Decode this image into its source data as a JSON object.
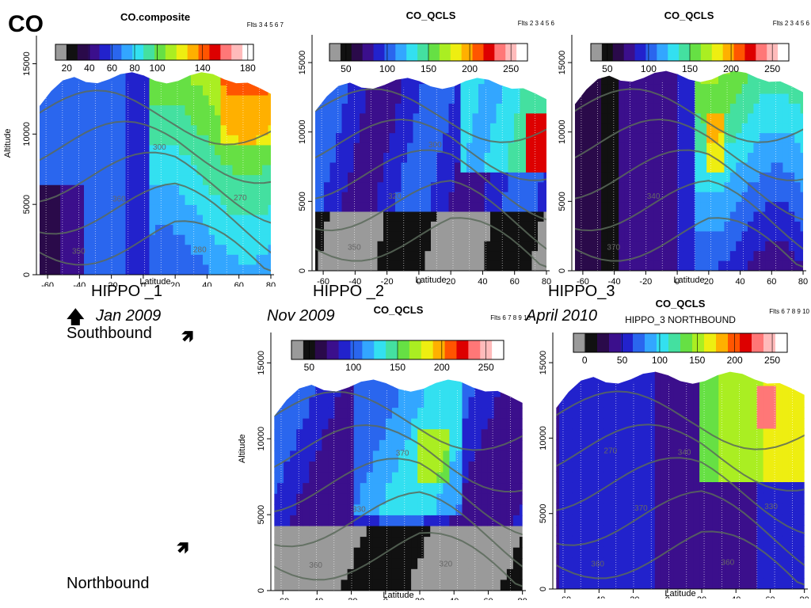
{
  "slide": {
    "title": "CO",
    "labels": {
      "hippo1": "HIPPO _1",
      "hippo1_date": "Jan 2009",
      "hippo2": "HIPPO _2",
      "hippo2_date": "Nov 2009",
      "hippo3": "HIPPO_3",
      "hippo3_date": "April 2010",
      "southbound": "Southbound",
      "northbound": "Northbound",
      "up_arrow": "🡅",
      "ne_arrow": "🡽"
    }
  },
  "chart_data": [
    {
      "type": "heatmap",
      "title": "CO.composite",
      "subtitle": "",
      "flights": "Flts 3  4  5  6  7",
      "xlabel": "Latitude",
      "ylabel": "Altitude",
      "xlim": [
        -67,
        82
      ],
      "ylim": [
        0,
        17000
      ],
      "xticks": [
        -60,
        -40,
        -20,
        0,
        20,
        40,
        60,
        80
      ],
      "yticks": [
        0,
        5000,
        10000,
        15000
      ],
      "colorbar_ticks": [
        20,
        40,
        60,
        80,
        100,
        140,
        180
      ],
      "colorbar_range": [
        10,
        185
      ],
      "contour_labels": [
        "350",
        "360",
        "300",
        "280",
        "270"
      ]
    },
    {
      "type": "heatmap",
      "title": "CO_QCLS",
      "subtitle": "",
      "flights": "Flts 2  3  4  5  6",
      "xlabel": "Latitude",
      "ylabel": "",
      "xlim": [
        -67,
        82
      ],
      "ylim": [
        0,
        17000
      ],
      "xticks": [
        -60,
        -40,
        -20,
        0,
        20,
        40,
        60,
        80
      ],
      "yticks": [
        0,
        5000,
        10000,
        15000
      ],
      "colorbar_ticks": [
        50,
        100,
        150,
        200,
        250
      ],
      "colorbar_range": [
        30,
        270
      ],
      "contour_labels": [
        "350",
        "320",
        "300"
      ]
    },
    {
      "type": "heatmap",
      "title": "CO_QCLS",
      "subtitle": "",
      "flights": "Flts 2  3  4  5  6",
      "xlabel": "Latitude",
      "ylabel": "",
      "xlim": [
        -67,
        82
      ],
      "ylim": [
        0,
        17000
      ],
      "xticks": [
        -60,
        -40,
        -20,
        0,
        20,
        40,
        60,
        80
      ],
      "yticks": [
        0,
        5000,
        10000,
        15000
      ],
      "colorbar_ticks": [
        50,
        100,
        150,
        200,
        250
      ],
      "colorbar_range": [
        30,
        270
      ],
      "contour_labels": [
        "370",
        "340"
      ]
    },
    {
      "type": "heatmap",
      "title": "CO_QCLS",
      "subtitle": "",
      "flights": "Flts 6  7  8  9  10",
      "xlabel": "Latitude",
      "ylabel": "Altitude",
      "xlim": [
        -67,
        82
      ],
      "ylim": [
        0,
        17000
      ],
      "xticks": [
        -60,
        -40,
        -20,
        0,
        20,
        40,
        60,
        80
      ],
      "yticks": [
        0,
        5000,
        10000,
        15000
      ],
      "colorbar_ticks": [
        50,
        100,
        150,
        200,
        250
      ],
      "colorbar_range": [
        30,
        270
      ],
      "contour_labels": [
        "360",
        "330",
        "370",
        "320"
      ]
    },
    {
      "type": "heatmap",
      "title": "CO_QCLS",
      "subtitle": "HIPPO_3 NORTHBOUND",
      "flights": "Flts 6  7  8  9  10",
      "xlabel": "Latitude",
      "ylabel": "",
      "xlim": [
        -67,
        82
      ],
      "ylim": [
        0,
        17000
      ],
      "xticks": [
        -60,
        -40,
        -20,
        0,
        20,
        40,
        60,
        80
      ],
      "yticks": [
        0,
        5000,
        10000,
        15000
      ],
      "colorbar_ticks": [
        0,
        50,
        100,
        150,
        200,
        250
      ],
      "colorbar_range": [
        -15,
        270
      ],
      "contour_labels": [
        "360",
        "370",
        "340",
        "360",
        "330",
        "270"
      ]
    }
  ]
}
